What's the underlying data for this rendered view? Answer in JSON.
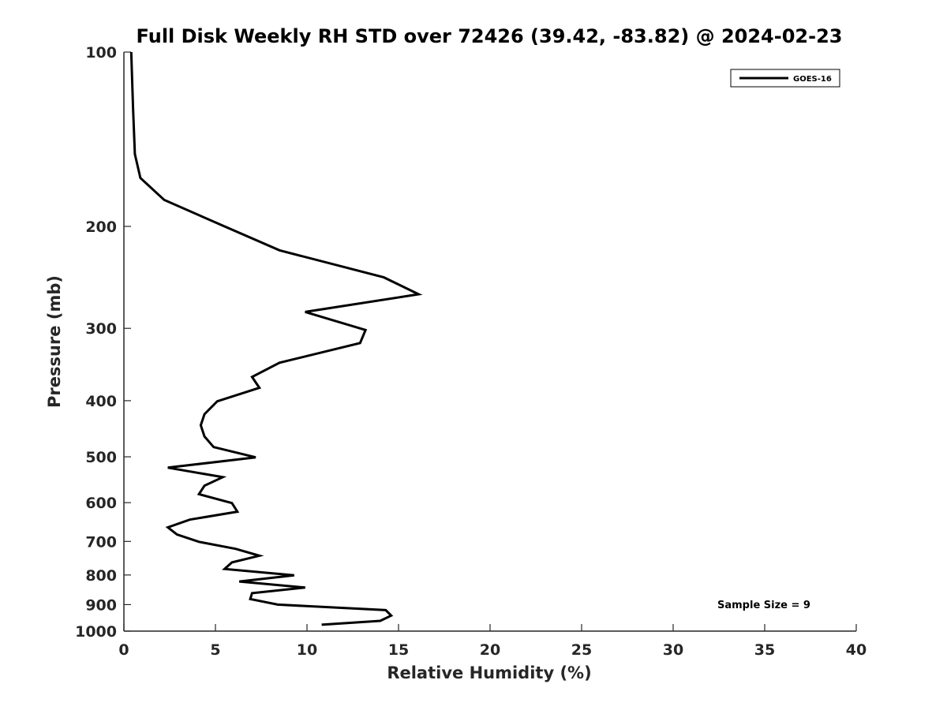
{
  "chart_data": {
    "type": "line",
    "title": "Full Disk Weekly RH STD over 72426 (39.42, -83.82) @ 2024-02-23",
    "xlabel": "Relative Humidity (%)",
    "ylabel": "Pressure (mb)",
    "xlim": [
      0,
      40
    ],
    "ylim": [
      100,
      1000
    ],
    "y_scale": "log",
    "y_reversed": true,
    "grid": false,
    "legend_position": "top-right",
    "x_ticks": [
      0,
      5,
      10,
      15,
      20,
      25,
      30,
      35,
      40
    ],
    "y_ticks": [
      100,
      200,
      300,
      400,
      500,
      600,
      700,
      800,
      900,
      1000
    ],
    "x_tick_labels": [
      "0",
      "5",
      "10",
      "15",
      "20",
      "25",
      "30",
      "35",
      "40"
    ],
    "y_tick_labels": [
      "100",
      "200",
      "300",
      "400",
      "500",
      "600",
      "700",
      "800",
      "900",
      "1000"
    ],
    "series": [
      {
        "name": "GOES-16",
        "color": "#000000",
        "points": [
          [
            0.4,
            100
          ],
          [
            0.5,
            125
          ],
          [
            0.6,
            150
          ],
          [
            0.9,
            165
          ],
          [
            2.2,
            180
          ],
          [
            5.5,
            200
          ],
          [
            8.5,
            220
          ],
          [
            14.2,
            245
          ],
          [
            16.1,
            262
          ],
          [
            9.9,
            281
          ],
          [
            13.2,
            302
          ],
          [
            12.9,
            318
          ],
          [
            8.5,
            344
          ],
          [
            7.0,
            364
          ],
          [
            7.4,
            380
          ],
          [
            5.1,
            401
          ],
          [
            4.4,
            422
          ],
          [
            4.2,
            441
          ],
          [
            4.4,
            461
          ],
          [
            4.9,
            481
          ],
          [
            7.2,
            501
          ],
          [
            2.4,
            522
          ],
          [
            5.4,
            542
          ],
          [
            4.4,
            561
          ],
          [
            4.1,
            580
          ],
          [
            5.9,
            601
          ],
          [
            6.2,
            622
          ],
          [
            3.6,
            642
          ],
          [
            2.4,
            662
          ],
          [
            2.9,
            681
          ],
          [
            4.1,
            701
          ],
          [
            6.1,
            721
          ],
          [
            7.4,
            741
          ],
          [
            5.9,
            761
          ],
          [
            5.5,
            781
          ],
          [
            9.3,
            801
          ],
          [
            6.3,
            821
          ],
          [
            9.9,
            841
          ],
          [
            7.0,
            860
          ],
          [
            6.9,
            880
          ],
          [
            8.4,
            900
          ],
          [
            14.3,
            920
          ],
          [
            14.6,
            940
          ],
          [
            14.0,
            960
          ],
          [
            10.8,
            975
          ]
        ]
      }
    ],
    "annotations": [
      "Sample Size = 9"
    ]
  }
}
